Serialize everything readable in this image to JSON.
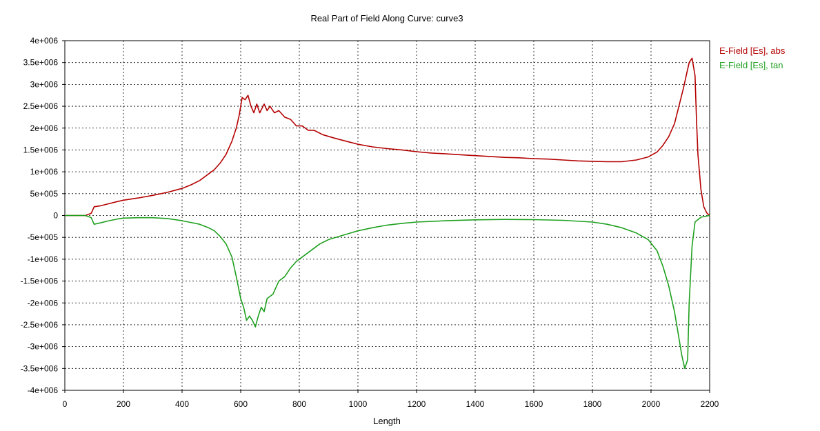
{
  "chart_data": {
    "type": "line",
    "title": "Real Part of Field Along Curve: curve3",
    "xlabel": "Length",
    "ylabel": "",
    "xlim": [
      0,
      2200
    ],
    "ylim": [
      -4000000,
      4000000
    ],
    "x_ticks": [
      0,
      200,
      400,
      600,
      800,
      1000,
      1200,
      1400,
      1600,
      1800,
      2000,
      2200
    ],
    "x_tick_labels": [
      "0",
      "200",
      "400",
      "600",
      "800",
      "1000",
      "1200",
      "1400",
      "1600",
      "1800",
      "2000",
      "2200"
    ],
    "y_ticks": [
      4000000,
      3500000,
      3000000,
      2500000,
      2000000,
      1500000,
      1000000,
      500000,
      0,
      -500000,
      -1000000,
      -1500000,
      -2000000,
      -2500000,
      -3000000,
      -3500000,
      -4000000
    ],
    "y_tick_labels": [
      "4e+006",
      "3.5e+006",
      "3e+006",
      "2.5e+006",
      "2e+006",
      "1.5e+006",
      "1e+006",
      "5e+005",
      "0",
      "-5e+005",
      "-1e+006",
      "-1.5e+006",
      "-2e+006",
      "-2.5e+006",
      "-3e+006",
      "-3.5e+006",
      "-4e+006"
    ],
    "grid": true,
    "legend_position": "top-right-outside",
    "series": [
      {
        "name": "E-Field [Es], abs",
        "color": "#b40000",
        "points": [
          [
            0,
            0
          ],
          [
            70,
            0
          ],
          [
            90,
            50000
          ],
          [
            100,
            200000
          ],
          [
            120,
            220000
          ],
          [
            150,
            270000
          ],
          [
            180,
            320000
          ],
          [
            200,
            350000
          ],
          [
            250,
            400000
          ],
          [
            300,
            460000
          ],
          [
            350,
            530000
          ],
          [
            400,
            620000
          ],
          [
            430,
            700000
          ],
          [
            460,
            800000
          ],
          [
            490,
            950000
          ],
          [
            510,
            1050000
          ],
          [
            530,
            1200000
          ],
          [
            550,
            1400000
          ],
          [
            570,
            1700000
          ],
          [
            585,
            2000000
          ],
          [
            595,
            2300000
          ],
          [
            605,
            2700000
          ],
          [
            615,
            2650000
          ],
          [
            625,
            2750000
          ],
          [
            635,
            2500000
          ],
          [
            645,
            2350000
          ],
          [
            655,
            2550000
          ],
          [
            665,
            2350000
          ],
          [
            680,
            2550000
          ],
          [
            690,
            2400000
          ],
          [
            700,
            2500000
          ],
          [
            715,
            2350000
          ],
          [
            730,
            2400000
          ],
          [
            750,
            2250000
          ],
          [
            770,
            2200000
          ],
          [
            790,
            2050000
          ],
          [
            810,
            2050000
          ],
          [
            830,
            1950000
          ],
          [
            850,
            1950000
          ],
          [
            880,
            1850000
          ],
          [
            920,
            1770000
          ],
          [
            960,
            1700000
          ],
          [
            1000,
            1630000
          ],
          [
            1050,
            1570000
          ],
          [
            1100,
            1530000
          ],
          [
            1150,
            1500000
          ],
          [
            1200,
            1460000
          ],
          [
            1250,
            1430000
          ],
          [
            1300,
            1410000
          ],
          [
            1350,
            1390000
          ],
          [
            1400,
            1370000
          ],
          [
            1450,
            1350000
          ],
          [
            1500,
            1330000
          ],
          [
            1550,
            1320000
          ],
          [
            1600,
            1300000
          ],
          [
            1650,
            1290000
          ],
          [
            1700,
            1270000
          ],
          [
            1750,
            1250000
          ],
          [
            1800,
            1240000
          ],
          [
            1850,
            1230000
          ],
          [
            1900,
            1230000
          ],
          [
            1950,
            1270000
          ],
          [
            1990,
            1340000
          ],
          [
            2020,
            1450000
          ],
          [
            2040,
            1600000
          ],
          [
            2060,
            1800000
          ],
          [
            2080,
            2100000
          ],
          [
            2095,
            2500000
          ],
          [
            2110,
            2900000
          ],
          [
            2120,
            3200000
          ],
          [
            2130,
            3500000
          ],
          [
            2140,
            3600000
          ],
          [
            2150,
            3200000
          ],
          [
            2155,
            2200000
          ],
          [
            2160,
            1400000
          ],
          [
            2170,
            600000
          ],
          [
            2180,
            200000
          ],
          [
            2190,
            60000
          ],
          [
            2200,
            0
          ]
        ]
      },
      {
        "name": "E-Field [Es], tan",
        "color": "#1ea01e",
        "points": [
          [
            0,
            0
          ],
          [
            70,
            0
          ],
          [
            90,
            -50000
          ],
          [
            100,
            -200000
          ],
          [
            120,
            -170000
          ],
          [
            150,
            -120000
          ],
          [
            180,
            -80000
          ],
          [
            200,
            -60000
          ],
          [
            250,
            -50000
          ],
          [
            300,
            -50000
          ],
          [
            350,
            -70000
          ],
          [
            400,
            -120000
          ],
          [
            430,
            -160000
          ],
          [
            460,
            -200000
          ],
          [
            490,
            -280000
          ],
          [
            510,
            -350000
          ],
          [
            530,
            -480000
          ],
          [
            550,
            -650000
          ],
          [
            570,
            -950000
          ],
          [
            585,
            -1400000
          ],
          [
            600,
            -1900000
          ],
          [
            610,
            -2100000
          ],
          [
            620,
            -2400000
          ],
          [
            630,
            -2300000
          ],
          [
            640,
            -2400000
          ],
          [
            650,
            -2550000
          ],
          [
            660,
            -2300000
          ],
          [
            670,
            -2100000
          ],
          [
            680,
            -2200000
          ],
          [
            690,
            -1900000
          ],
          [
            710,
            -1800000
          ],
          [
            730,
            -1500000
          ],
          [
            750,
            -1400000
          ],
          [
            770,
            -1200000
          ],
          [
            790,
            -1050000
          ],
          [
            810,
            -950000
          ],
          [
            840,
            -800000
          ],
          [
            870,
            -650000
          ],
          [
            900,
            -550000
          ],
          [
            950,
            -450000
          ],
          [
            1000,
            -350000
          ],
          [
            1050,
            -280000
          ],
          [
            1100,
            -220000
          ],
          [
            1150,
            -180000
          ],
          [
            1200,
            -150000
          ],
          [
            1300,
            -120000
          ],
          [
            1400,
            -100000
          ],
          [
            1500,
            -90000
          ],
          [
            1600,
            -95000
          ],
          [
            1700,
            -110000
          ],
          [
            1800,
            -150000
          ],
          [
            1850,
            -200000
          ],
          [
            1900,
            -280000
          ],
          [
            1950,
            -400000
          ],
          [
            1990,
            -550000
          ],
          [
            2020,
            -800000
          ],
          [
            2040,
            -1150000
          ],
          [
            2060,
            -1600000
          ],
          [
            2080,
            -2200000
          ],
          [
            2095,
            -2800000
          ],
          [
            2105,
            -3200000
          ],
          [
            2115,
            -3500000
          ],
          [
            2125,
            -3300000
          ],
          [
            2130,
            -2000000
          ],
          [
            2140,
            -700000
          ],
          [
            2150,
            -150000
          ],
          [
            2170,
            -40000
          ],
          [
            2200,
            0
          ]
        ]
      }
    ]
  }
}
